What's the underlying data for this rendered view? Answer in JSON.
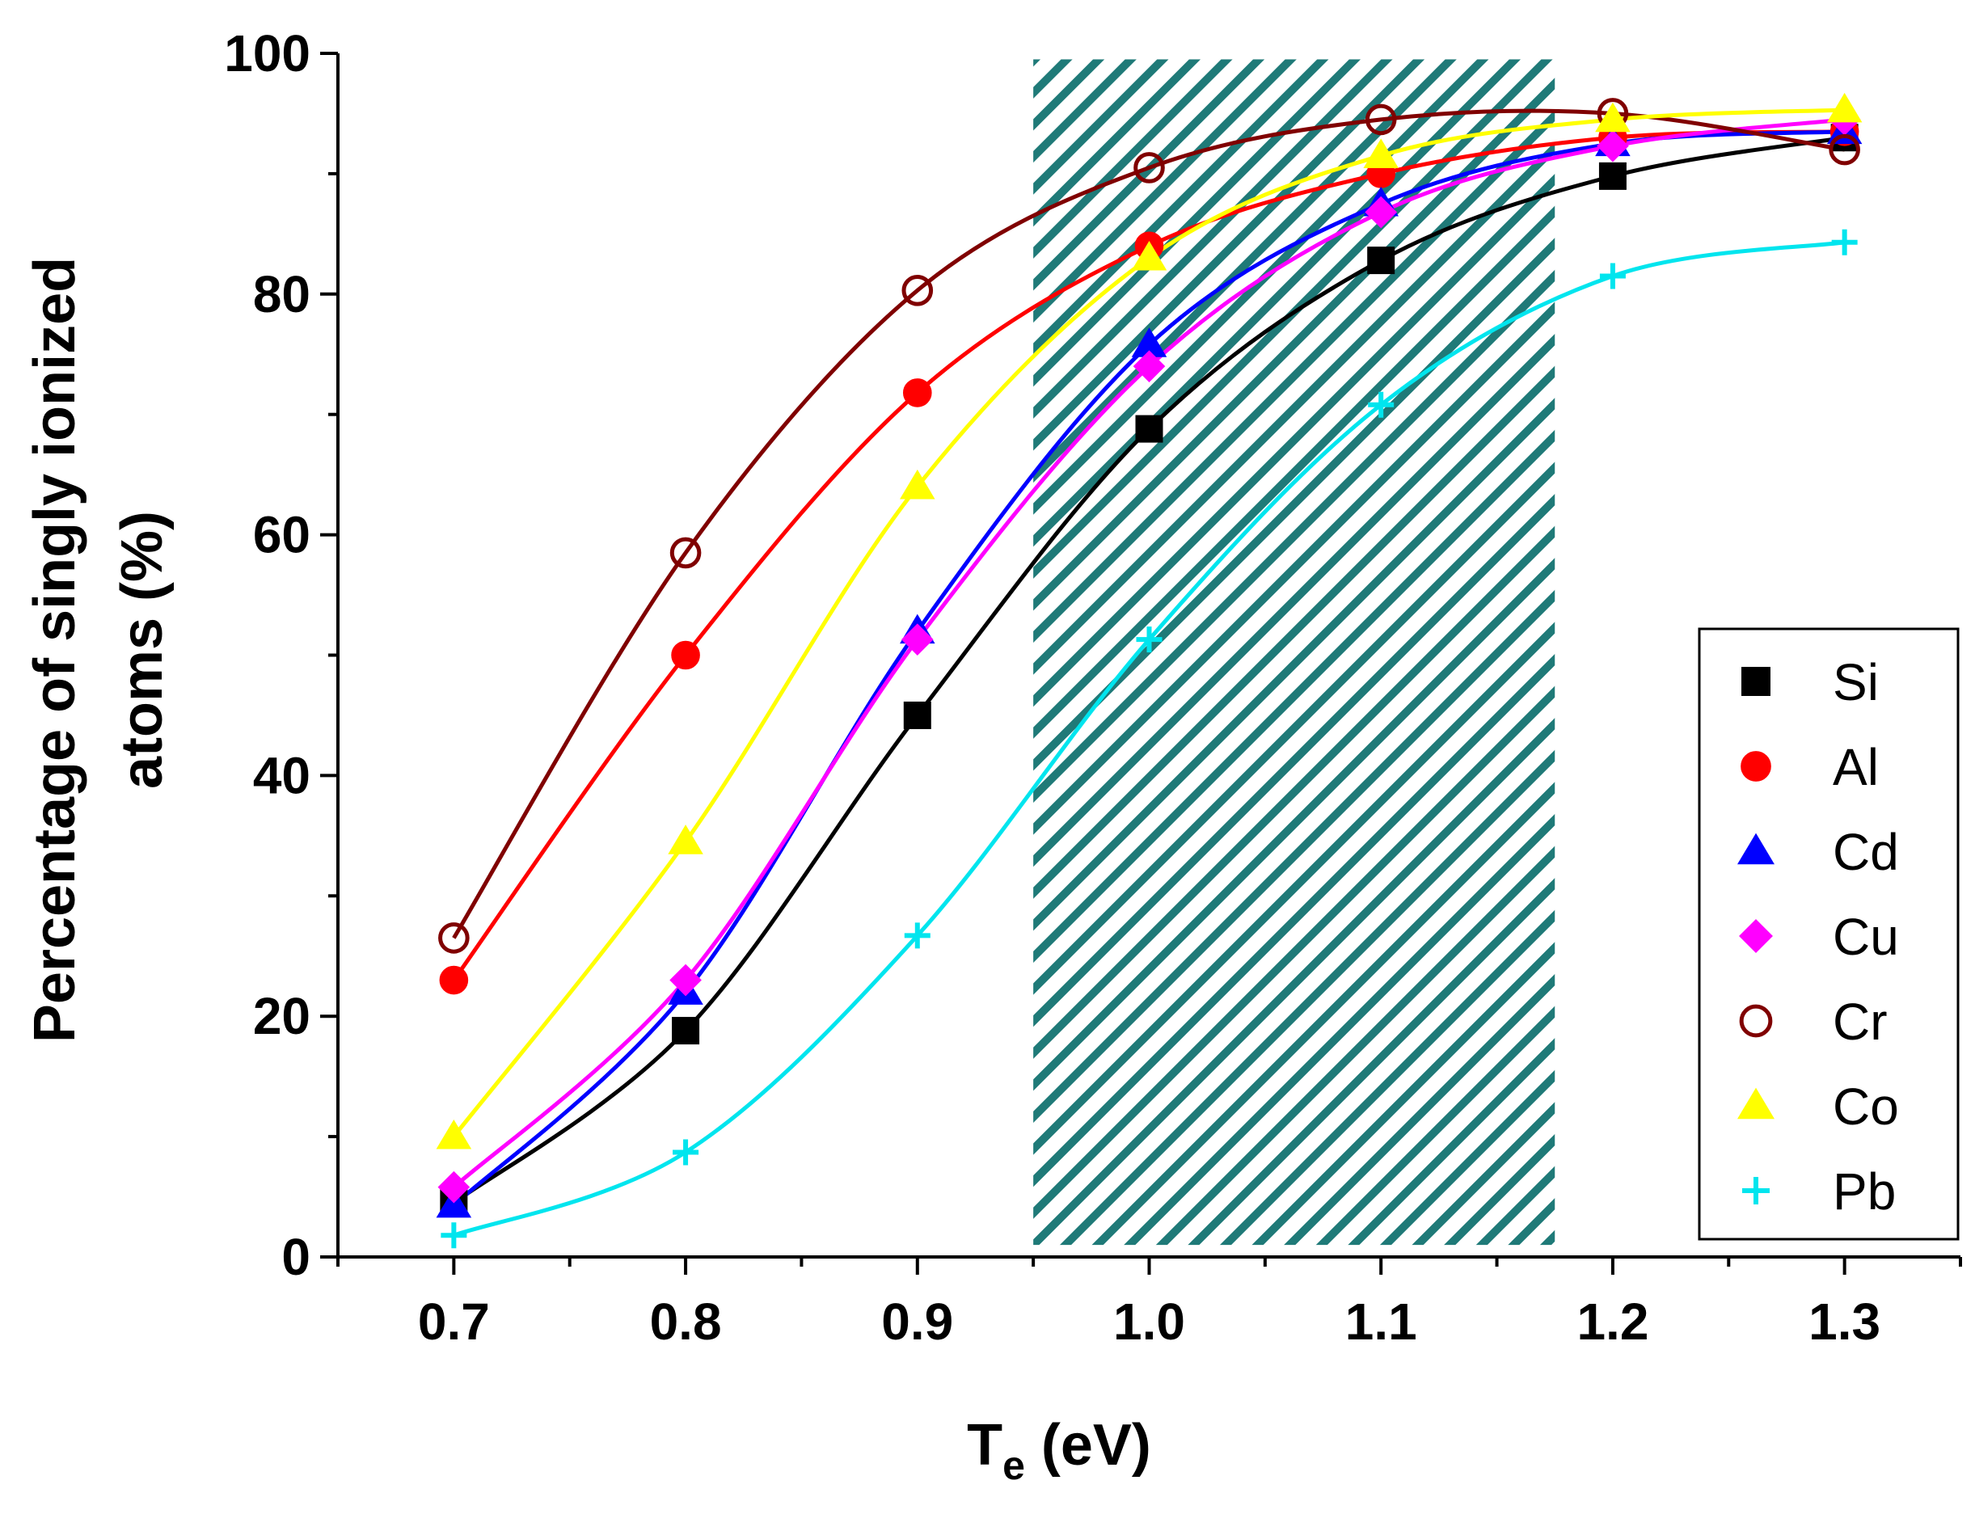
{
  "chart_data": {
    "type": "line",
    "title": "",
    "xlabel_main": "T",
    "xlabel_sub": "e",
    "xlabel_unit": " (eV)",
    "ylabel_line1": "Percentage of singly ionized",
    "ylabel_line2": "atoms (%)",
    "xlim": [
      0.65,
      1.35
    ],
    "ylim": [
      0,
      100
    ],
    "x_ticks": [
      "0.7",
      "0.8",
      "0.9",
      "1.0",
      "1.1",
      "1.2",
      "1.3"
    ],
    "y_ticks": [
      "0",
      "20",
      "40",
      "60",
      "80",
      "100"
    ],
    "shaded_region": {
      "x_start": 0.95,
      "x_end": 1.175,
      "y_start": 1,
      "y_end": 99.5,
      "color": "#1f7a78"
    },
    "x": [
      0.7,
      0.8,
      0.9,
      1.0,
      1.1,
      1.2,
      1.3
    ],
    "legend_position": "bottom-right",
    "series": [
      {
        "name": "Si",
        "marker": "square",
        "filled": true,
        "color": "#000000",
        "values": [
          4.5,
          18.8,
          45.0,
          68.8,
          82.8,
          89.8,
          93.0
        ]
      },
      {
        "name": "Al",
        "marker": "circle",
        "filled": true,
        "color": "#ff0000",
        "values": [
          23.0,
          50.0,
          71.8,
          84.0,
          90.0,
          93.0,
          93.5
        ]
      },
      {
        "name": "Cd",
        "marker": "triangle",
        "filled": true,
        "color": "#0000ff",
        "values": [
          4.3,
          22.0,
          52.0,
          75.8,
          87.5,
          92.5,
          93.5
        ]
      },
      {
        "name": "Cu",
        "marker": "diamond",
        "filled": true,
        "color": "#ff00ff",
        "values": [
          5.8,
          23.0,
          51.3,
          74.0,
          86.8,
          92.3,
          94.5
        ]
      },
      {
        "name": "Cr",
        "marker": "circle",
        "filled": false,
        "color": "#800000",
        "values": [
          26.5,
          58.5,
          80.3,
          90.5,
          94.5,
          95.0,
          92.0
        ]
      },
      {
        "name": "Co",
        "marker": "triangle",
        "filled": true,
        "color": "#ffff00",
        "values": [
          10.0,
          34.5,
          64.0,
          83.0,
          91.5,
          94.5,
          95.3
        ]
      },
      {
        "name": "Pb",
        "marker": "plus",
        "filled": false,
        "color": "#00e5ee",
        "values": [
          1.8,
          8.7,
          26.7,
          51.3,
          70.8,
          81.5,
          84.3
        ]
      }
    ]
  }
}
